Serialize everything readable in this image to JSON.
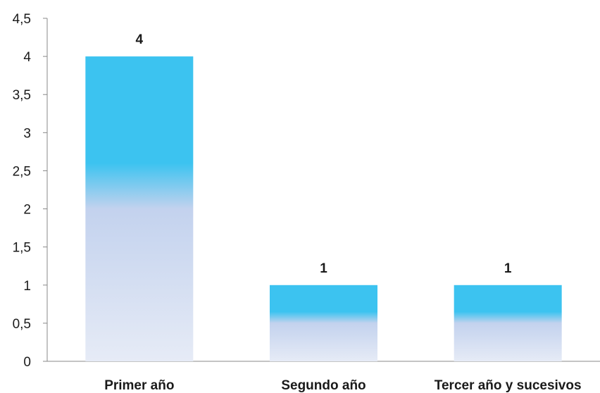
{
  "chart_data": {
    "type": "bar",
    "categories": [
      "Primer año",
      "Segundo año",
      "Tercer año y sucesivos"
    ],
    "values": [
      4,
      1,
      1
    ],
    "data_labels": [
      "4",
      "1",
      "1"
    ],
    "ylim": [
      0,
      4.5
    ],
    "yticks": [
      "0",
      "0,5",
      "1",
      "1,5",
      "2",
      "2,5",
      "3",
      "3,5",
      "4",
      "4,5"
    ],
    "grid": false,
    "legend": "none",
    "colors": {
      "bar_top": "#3cc3f0",
      "bar_bottom": "#e6ebf6",
      "bar_mid": "#c3d2ee",
      "axis": "#888888"
    }
  }
}
